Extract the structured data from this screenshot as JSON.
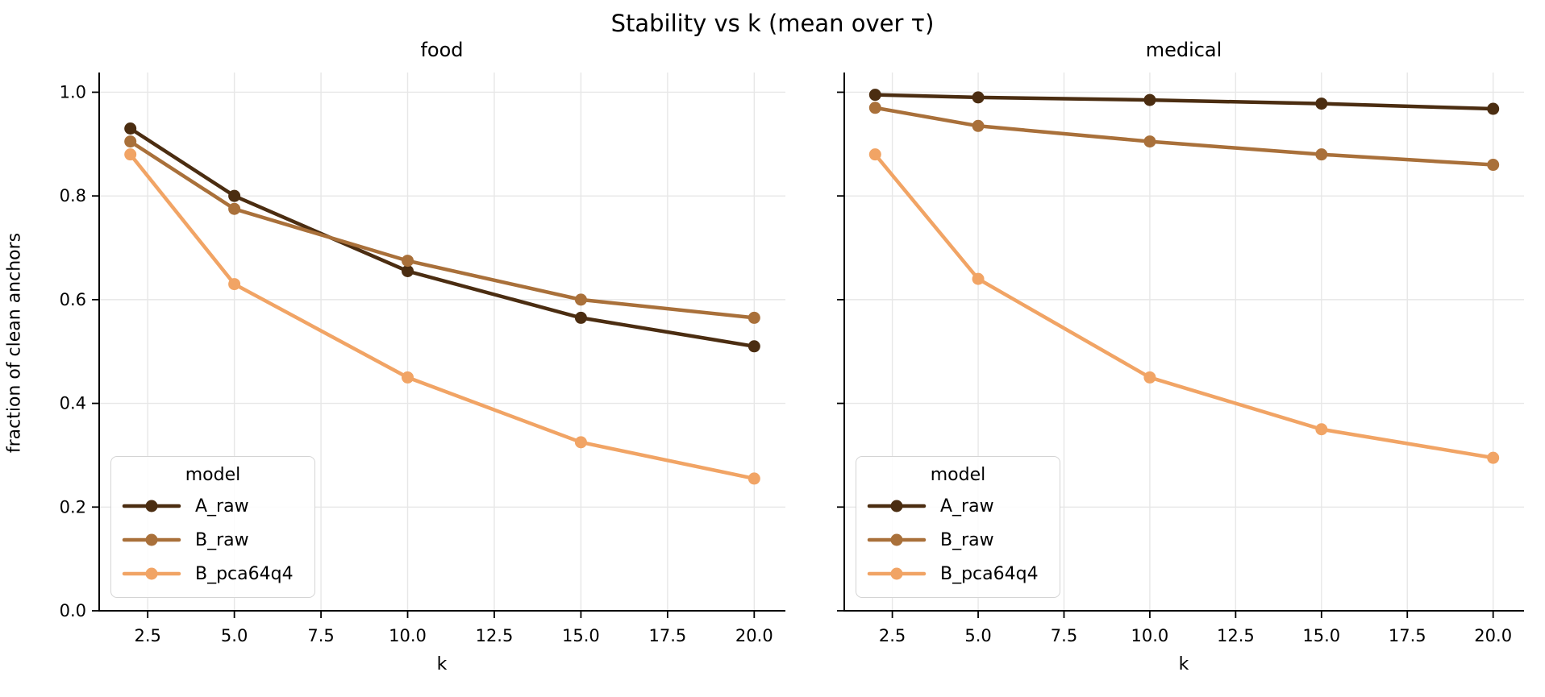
{
  "figure": {
    "title": "Stability vs k (mean over τ)",
    "background": "#ffffff",
    "grid_color": "#e7e7e7",
    "spine_color": "#000000",
    "tick_text_color": "#000000",
    "legend_border_color": "#d4d4d4"
  },
  "chart_data": [
    {
      "type": "line",
      "title": "food",
      "xlabel": "k",
      "ylabel": "fraction of clean anchors",
      "x": [
        2,
        5,
        10,
        15,
        20
      ],
      "xlim": [
        1.1,
        20.9
      ],
      "ylim": [
        0,
        1.038
      ],
      "xticks": [
        2.5,
        5.0,
        7.5,
        10.0,
        12.5,
        15.0,
        17.5,
        20.0
      ],
      "xtick_labels": [
        "2.5",
        "5.0",
        "7.5",
        "10.0",
        "12.5",
        "15.0",
        "17.5",
        "20.0"
      ],
      "yticks": [
        0.0,
        0.2,
        0.4,
        0.6,
        0.8,
        1.0
      ],
      "ytick_labels": [
        "0.0",
        "0.2",
        "0.4",
        "0.6",
        "0.8",
        "1.0"
      ],
      "show_ytick_labels": true,
      "grid": true,
      "legend_title": "model",
      "legend_position": "lower left",
      "series": [
        {
          "name": "A_raw",
          "color": "#4b2d11",
          "values": [
            0.93,
            0.8,
            0.655,
            0.565,
            0.51
          ]
        },
        {
          "name": "B_raw",
          "color": "#a9703a",
          "values": [
            0.905,
            0.775,
            0.675,
            0.6,
            0.565
          ]
        },
        {
          "name": "B_pca64q4",
          "color": "#f1a465",
          "values": [
            0.88,
            0.63,
            0.45,
            0.325,
            0.255
          ]
        }
      ]
    },
    {
      "type": "line",
      "title": "medical",
      "xlabel": "k",
      "ylabel": "",
      "x": [
        2,
        5,
        10,
        15,
        20
      ],
      "xlim": [
        1.1,
        20.9
      ],
      "ylim": [
        0,
        1.038
      ],
      "xticks": [
        2.5,
        5.0,
        7.5,
        10.0,
        12.5,
        15.0,
        17.5,
        20.0
      ],
      "xtick_labels": [
        "2.5",
        "5.0",
        "7.5",
        "10.0",
        "12.5",
        "15.0",
        "17.5",
        "20.0"
      ],
      "yticks": [
        0.0,
        0.2,
        0.4,
        0.6,
        0.8,
        1.0
      ],
      "ytick_labels": [
        "0.0",
        "0.2",
        "0.4",
        "0.6",
        "0.8",
        "1.0"
      ],
      "show_ytick_labels": false,
      "grid": true,
      "legend_title": "model",
      "legend_position": "lower left",
      "series": [
        {
          "name": "A_raw",
          "color": "#4b2d11",
          "values": [
            0.995,
            0.99,
            0.985,
            0.978,
            0.968
          ]
        },
        {
          "name": "B_raw",
          "color": "#a9703a",
          "values": [
            0.97,
            0.935,
            0.905,
            0.88,
            0.86
          ]
        },
        {
          "name": "B_pca64q4",
          "color": "#f1a465",
          "values": [
            0.88,
            0.64,
            0.45,
            0.35,
            0.295
          ]
        }
      ]
    }
  ]
}
